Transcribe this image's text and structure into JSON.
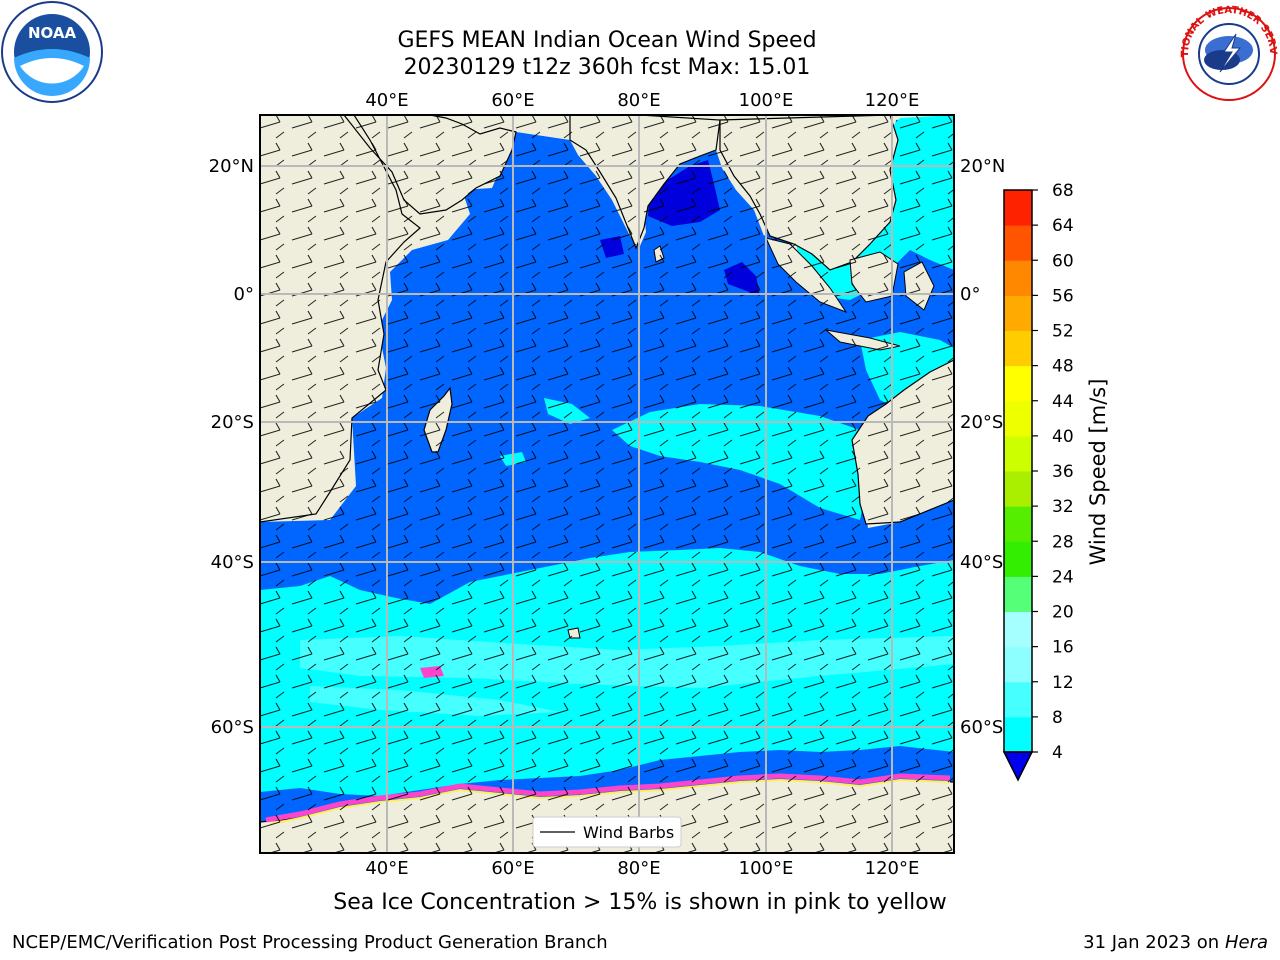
{
  "header": {
    "title_line1": "GEFS MEAN Indian Ocean Wind Speed",
    "title_line2": "20230129 t12z 360h fcst   Max: 15.01"
  },
  "map": {
    "lon_labels": [
      "40°E",
      "60°E",
      "80°E",
      "100°E",
      "120°E"
    ],
    "lat_labels_left": [
      "20°N",
      "0°",
      "20°S",
      "40°S",
      "60°S"
    ],
    "lat_labels_right": [
      "20°N",
      "0°",
      "20°S",
      "40°S",
      "60°S"
    ],
    "legend_label": "Wind Barbs",
    "colors": {
      "land": "#efeedd",
      "ocean_deep": "#0066ff",
      "cyan": "#00ffff",
      "light_cyan": "#46ffff",
      "navy": "#0000dd",
      "ice_pink": "#ff44cc",
      "ice_yellow": "#ffee55"
    }
  },
  "colorbar": {
    "label": "Wind Speed [m/s]",
    "ticks": [
      "4",
      "8",
      "12",
      "16",
      "20",
      "24",
      "28",
      "32",
      "36",
      "40",
      "44",
      "48",
      "52",
      "56",
      "60",
      "64",
      "68"
    ],
    "colors": [
      "#0066ff",
      "#00ffff",
      "#46ffff",
      "#8dffff",
      "#a6ffff",
      "#55ff77",
      "#33ee00",
      "#55ee00",
      "#aaee00",
      "#ccff00",
      "#eeff00",
      "#ffff00",
      "#ffcc00",
      "#ffaa00",
      "#ff8800",
      "#ff5500",
      "#ff2200",
      "#ff0000"
    ]
  },
  "caption": "Sea Ice Concentration > 15% is shown in pink to yellow",
  "footer": {
    "left": "NCEP/EMC/Verification Post Processing Product Generation Branch",
    "right_date": "31 Jan 2023 on ",
    "right_host": "Hera"
  },
  "logos": {
    "noaa_text": "NOAA",
    "nws_text": "NATIONAL WEATHER SERVICE"
  }
}
